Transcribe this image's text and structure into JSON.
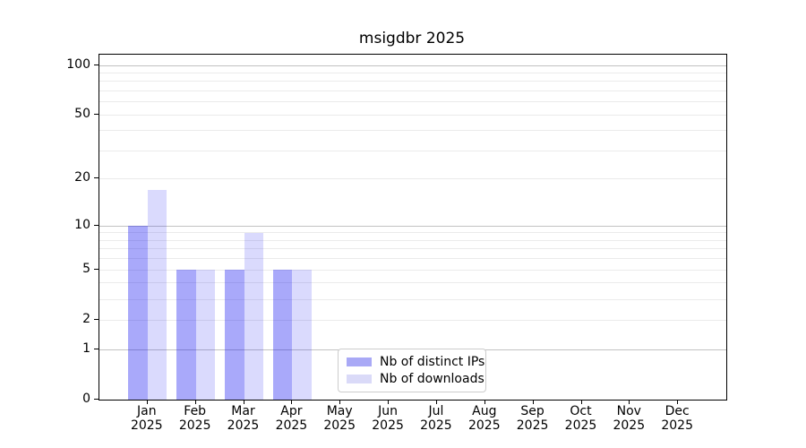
{
  "chart_data": {
    "type": "bar",
    "title": "msigdbr 2025",
    "x_categories": [
      "Jan",
      "Feb",
      "Mar",
      "Apr",
      "May",
      "Jun",
      "Jul",
      "Aug",
      "Sep",
      "Oct",
      "Nov",
      "Dec"
    ],
    "x_year": "2025",
    "series": [
      {
        "name": "Nb of distinct IPs",
        "bar_color": "rgba(10,10,240,0.35)",
        "legend_color": "#a9a9f6",
        "values": [
          10,
          5,
          5,
          5,
          0,
          0,
          0,
          0,
          0,
          0,
          0,
          0
        ]
      },
      {
        "name": "Nb of downloads",
        "bar_color": "rgba(10,10,240,0.15)",
        "legend_color": "#dadaf8",
        "values": [
          17,
          5,
          9,
          5,
          0,
          0,
          0,
          0,
          0,
          0,
          0,
          0
        ]
      }
    ],
    "yscale": "log10(1+v)",
    "ylim": [
      0,
      118
    ],
    "y_ticks": [
      0,
      1,
      2,
      5,
      10,
      20,
      50,
      100
    ],
    "y_major_gridlines": [
      1,
      10,
      100
    ],
    "y_minor_gridlines": [
      2,
      3,
      4,
      5,
      6,
      7,
      8,
      9,
      20,
      30,
      40,
      50,
      60,
      70,
      80,
      90
    ],
    "grid": "horizontal",
    "legend_position": "inside-lower-center",
    "colors": {
      "spine": "#000000",
      "grid_minor": "#ebebeb",
      "grid_major": "#c2c2c2",
      "text": "#000000",
      "legend_border": "#cccccc",
      "background": "#ffffff"
    }
  }
}
